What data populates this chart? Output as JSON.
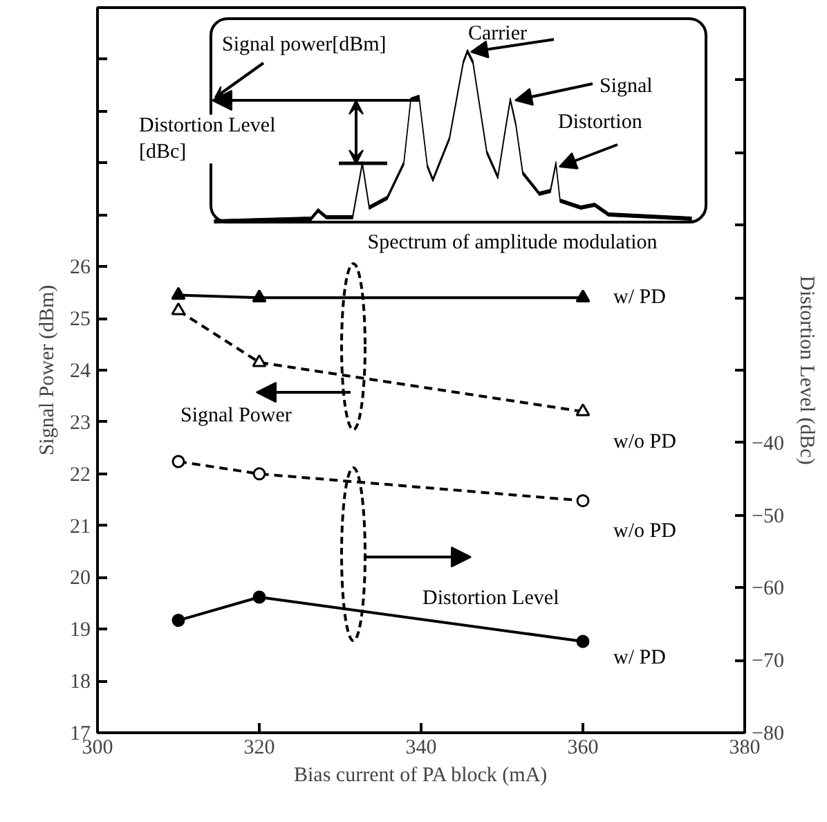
{
  "chart_data": {
    "type": "line",
    "xlabel": "Bias current of PA block (mA)",
    "ylabel": "Signal Power (dBm)",
    "y2label": "Distortion Level (dBc)",
    "x": [
      310,
      320,
      360
    ],
    "series": [
      {
        "name": "w/ PD",
        "color": "#000000",
        "values": [
          25.45,
          25.4,
          25.4
        ],
        "marker": "triangle",
        "line_style": "solid"
      },
      {
        "name": "w/o PD",
        "color": "#000000",
        "values": [
          25.15,
          24.15,
          23.2
        ],
        "marker": "triangle",
        "line_style": "dashed"
      },
      {
        "name": "w/o PD",
        "color": "#000000",
        "values": [
          -42.6,
          -44.3,
          -48.0
        ],
        "marker": "circle",
        "line_style": "dashed",
        "axis": "y2"
      },
      {
        "name": "w/ PD",
        "color": "#000000",
        "values": [
          -64.5,
          -61.3,
          -67.4
        ],
        "marker": "circle",
        "line_style": "solid",
        "axis": "y2"
      }
    ],
    "xlim": [
      300,
      380
    ],
    "xticks": [
      300,
      320,
      340,
      360,
      380
    ],
    "ylim": [
      17,
      31
    ],
    "yticks": [
      17,
      18,
      19,
      20,
      21,
      22,
      23,
      24,
      25,
      26,
      {
        "value": 27,
        "label": null
      },
      {
        "value": 28,
        "label": null
      },
      {
        "value": 29,
        "label": null
      },
      {
        "value": 30,
        "label": null
      }
    ],
    "y2lim": [
      -80,
      20
    ],
    "y2ticks": [
      -80,
      -70,
      -60,
      -50,
      -40,
      {
        "value": -30,
        "label": null
      },
      {
        "value": -20,
        "label": null
      },
      {
        "value": -10,
        "label": null
      },
      {
        "value": 0,
        "label": null
      },
      {
        "value": 10,
        "label": null
      }
    ],
    "grid": false,
    "legend": false,
    "annotations": [
      "Signal power[dBm]",
      "Carrier",
      "Signal",
      "Distortion",
      "Distortion Level\n[dBc]",
      "Spectrum of amplitude modulation",
      "Signal Power",
      "Distortion Level"
    ]
  }
}
